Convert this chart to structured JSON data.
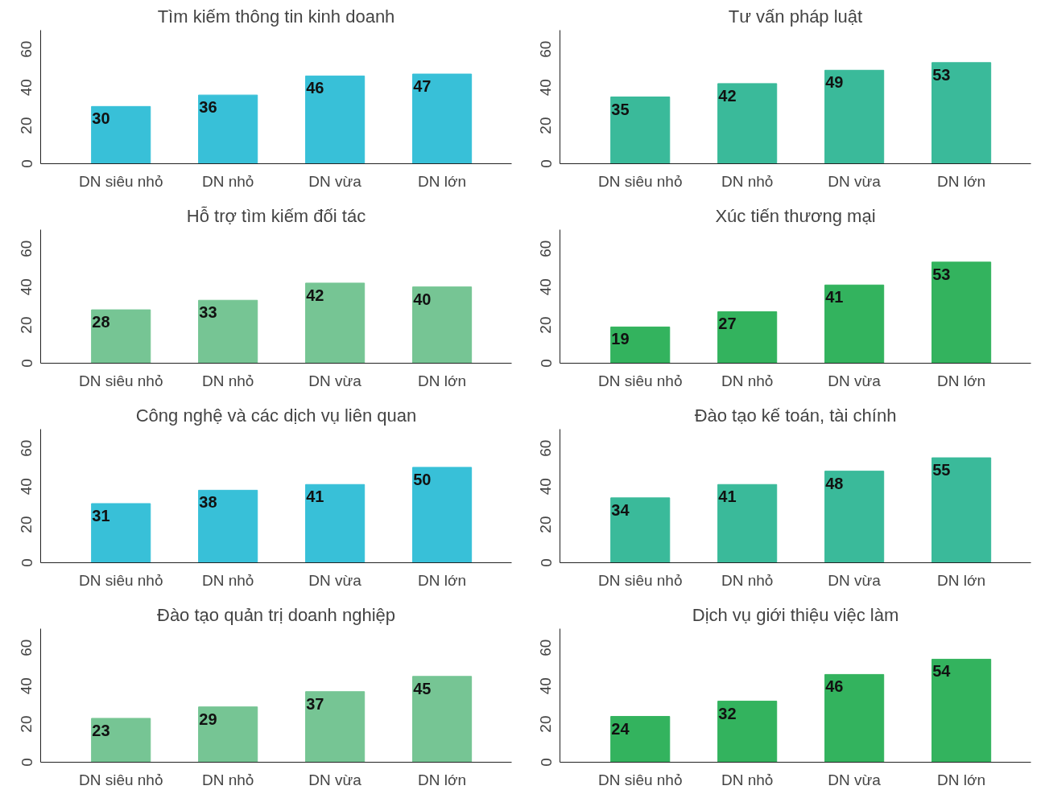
{
  "chart_data": [
    {
      "type": "bar",
      "title": "Tìm kiếm thông tin kinh doanh",
      "categories": [
        "DN siêu nhỏ",
        "DN nhỏ",
        "DN vừa",
        "DN lớn"
      ],
      "values": [
        30,
        36,
        46,
        47
      ],
      "color": "#38c0d8",
      "ylim": [
        0,
        70
      ],
      "yticks": [
        0,
        20,
        40,
        60
      ],
      "data_labels": true,
      "grid": false
    },
    {
      "type": "bar",
      "title": "Tư vấn pháp luật",
      "categories": [
        "DN siêu nhỏ",
        "DN nhỏ",
        "DN vừa",
        "DN lớn"
      ],
      "values": [
        35,
        42,
        49,
        53
      ],
      "color": "#3aba9a",
      "ylim": [
        0,
        70
      ],
      "yticks": [
        0,
        20,
        40,
        60
      ],
      "data_labels": true,
      "grid": false
    },
    {
      "type": "bar",
      "title": "Hỗ trợ tìm kiếm đối tác",
      "categories": [
        "DN siêu nhỏ",
        "DN nhỏ",
        "DN vừa",
        "DN lớn"
      ],
      "values": [
        28,
        33,
        42,
        40
      ],
      "color": "#76c594",
      "ylim": [
        0,
        70
      ],
      "yticks": [
        0,
        20,
        40,
        60
      ],
      "data_labels": true,
      "grid": false
    },
    {
      "type": "bar",
      "title": "Xúc tiến thương mại",
      "categories": [
        "DN siêu nhỏ",
        "DN nhỏ",
        "DN vừa",
        "DN lớn"
      ],
      "values": [
        19,
        27,
        41,
        53
      ],
      "color": "#33b35e",
      "ylim": [
        0,
        70
      ],
      "yticks": [
        0,
        20,
        40,
        60
      ],
      "data_labels": true,
      "grid": false
    },
    {
      "type": "bar",
      "title": "Công nghệ và các dịch vụ liên quan",
      "categories": [
        "DN siêu nhỏ",
        "DN nhỏ",
        "DN vừa",
        "DN lớn"
      ],
      "values": [
        31,
        38,
        41,
        50
      ],
      "color": "#38c0d8",
      "ylim": [
        0,
        70
      ],
      "yticks": [
        0,
        20,
        40,
        60
      ],
      "data_labels": true,
      "grid": false
    },
    {
      "type": "bar",
      "title": "Đào tạo kế toán, tài chính",
      "categories": [
        "DN siêu nhỏ",
        "DN nhỏ",
        "DN vừa",
        "DN lớn"
      ],
      "values": [
        34,
        41,
        48,
        55
      ],
      "color": "#3aba9a",
      "ylim": [
        0,
        70
      ],
      "yticks": [
        0,
        20,
        40,
        60
      ],
      "data_labels": true,
      "grid": false
    },
    {
      "type": "bar",
      "title": "Đào tạo quản trị doanh nghiệp",
      "categories": [
        "DN siêu nhỏ",
        "DN nhỏ",
        "DN vừa",
        "DN lớn"
      ],
      "values": [
        23,
        29,
        37,
        45
      ],
      "color": "#76c594",
      "ylim": [
        0,
        70
      ],
      "yticks": [
        0,
        20,
        40,
        60
      ],
      "data_labels": true,
      "grid": false
    },
    {
      "type": "bar",
      "title": "Dịch vụ giới thiệu việc làm",
      "categories": [
        "DN siêu nhỏ",
        "DN nhỏ",
        "DN vừa",
        "DN lớn"
      ],
      "values": [
        24,
        32,
        46,
        54
      ],
      "color": "#33b35e",
      "ylim": [
        0,
        70
      ],
      "yticks": [
        0,
        20,
        40,
        60
      ],
      "data_labels": true,
      "grid": false
    }
  ]
}
